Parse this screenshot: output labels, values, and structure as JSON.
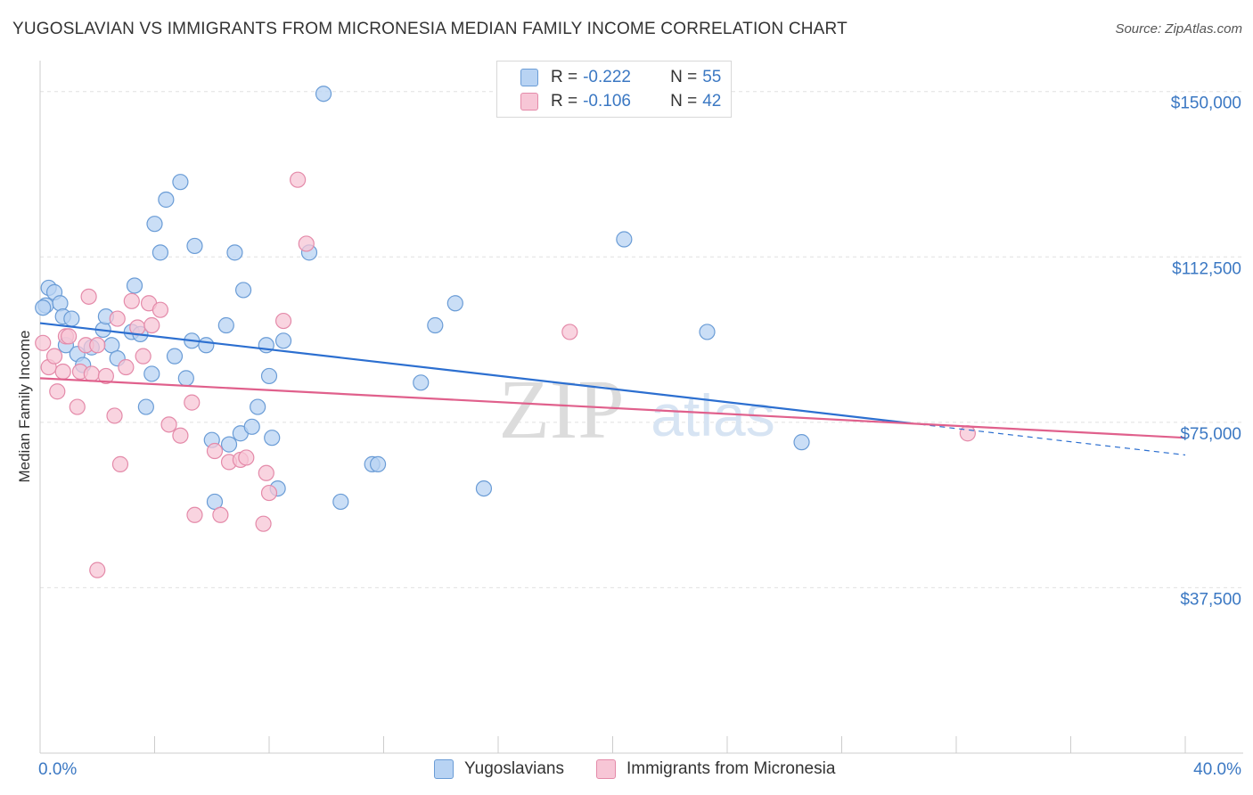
{
  "title": "YUGOSLAVIAN VS IMMIGRANTS FROM MICRONESIA MEDIAN FAMILY INCOME CORRELATION CHART",
  "source": "Source: ZipAtlas.com",
  "watermark": {
    "zip": "ZIP",
    "atlas": "atlas"
  },
  "colors": {
    "blue_fill": "#b8d3f3",
    "blue_stroke": "#6a9cd6",
    "blue_line": "#2c6fd0",
    "pink_fill": "#f7c6d6",
    "pink_stroke": "#e48aa9",
    "pink_line": "#e0608c",
    "axis_text": "#3b78c3",
    "grid": "#e0e0e0"
  },
  "legend": {
    "rows": [
      {
        "r_label": "R =",
        "r_value": "-0.222",
        "n_label": "N =",
        "n_value": "55"
      },
      {
        "r_label": "R =",
        "r_value": "-0.106",
        "n_label": "N =",
        "n_value": "42"
      }
    ]
  },
  "bottom_legend": [
    "Yugoslavians",
    "Immigrants from Micronesia"
  ],
  "chart_data": {
    "type": "scatter",
    "xlabel": "",
    "ylabel": "Median Family Income",
    "xlim": [
      0,
      40
    ],
    "ylim": [
      0,
      155000
    ],
    "x_tick_labels": [
      "0.0%",
      "40.0%"
    ],
    "y_ticks": [
      37500,
      75000,
      112500,
      150000
    ],
    "y_tick_labels": [
      "$37,500",
      "$75,000",
      "$112,500",
      "$150,000"
    ],
    "grid": true,
    "series": [
      {
        "name": "Yugoslavians",
        "trend": {
          "x": [
            0,
            30.4
          ],
          "y": [
            97500,
            74800
          ],
          "dashed_to": [
            40,
            67600
          ]
        },
        "points": [
          [
            0.2,
            101500
          ],
          [
            0.3,
            105500
          ],
          [
            0.5,
            104500
          ],
          [
            0.7,
            102000
          ],
          [
            0.8,
            99000
          ],
          [
            1.1,
            98500
          ],
          [
            0.9,
            92500
          ],
          [
            1.3,
            90500
          ],
          [
            1.5,
            88000
          ],
          [
            1.8,
            92000
          ],
          [
            2.2,
            96000
          ],
          [
            2.3,
            99000
          ],
          [
            2.5,
            92500
          ],
          [
            2.7,
            89500
          ],
          [
            3.2,
            95500
          ],
          [
            3.3,
            106000
          ],
          [
            3.5,
            95000
          ],
          [
            3.7,
            78500
          ],
          [
            3.9,
            86000
          ],
          [
            4.0,
            120000
          ],
          [
            4.2,
            113500
          ],
          [
            4.4,
            125500
          ],
          [
            4.7,
            90000
          ],
          [
            4.9,
            129500
          ],
          [
            5.1,
            85000
          ],
          [
            5.3,
            93500
          ],
          [
            5.4,
            115000
          ],
          [
            5.8,
            92500
          ],
          [
            6.0,
            71000
          ],
          [
            6.1,
            57000
          ],
          [
            6.5,
            97000
          ],
          [
            6.6,
            70000
          ],
          [
            6.8,
            113500
          ],
          [
            7.0,
            72500
          ],
          [
            7.1,
            105000
          ],
          [
            7.4,
            74000
          ],
          [
            7.6,
            78500
          ],
          [
            7.9,
            92500
          ],
          [
            8.0,
            85500
          ],
          [
            8.1,
            71500
          ],
          [
            8.3,
            60000
          ],
          [
            8.5,
            93500
          ],
          [
            9.4,
            113500
          ],
          [
            9.9,
            149500
          ],
          [
            10.5,
            57000
          ],
          [
            11.6,
            65500
          ],
          [
            11.8,
            65500
          ],
          [
            13.3,
            84000
          ],
          [
            13.8,
            97000
          ],
          [
            14.5,
            102000
          ],
          [
            15.5,
            60000
          ],
          [
            20.4,
            116500
          ],
          [
            23.3,
            95500
          ],
          [
            26.6,
            70500
          ],
          [
            0.1,
            101000
          ]
        ]
      },
      {
        "name": "Immigrants from Micronesia",
        "trend": {
          "x": [
            0,
            40
          ],
          "y": [
            85000,
            71500
          ]
        },
        "points": [
          [
            0.1,
            93000
          ],
          [
            0.3,
            87500
          ],
          [
            0.5,
            90000
          ],
          [
            0.6,
            82000
          ],
          [
            0.8,
            86500
          ],
          [
            0.9,
            94500
          ],
          [
            1.0,
            94500
          ],
          [
            1.3,
            78500
          ],
          [
            1.4,
            86500
          ],
          [
            1.6,
            92500
          ],
          [
            1.7,
            103500
          ],
          [
            1.8,
            86000
          ],
          [
            2.0,
            92500
          ],
          [
            2.0,
            41500
          ],
          [
            2.3,
            85500
          ],
          [
            2.6,
            76500
          ],
          [
            2.7,
            98500
          ],
          [
            2.8,
            65500
          ],
          [
            3.0,
            87500
          ],
          [
            3.2,
            102500
          ],
          [
            3.4,
            96500
          ],
          [
            3.6,
            90000
          ],
          [
            3.8,
            102000
          ],
          [
            3.9,
            97000
          ],
          [
            4.2,
            100500
          ],
          [
            4.5,
            74500
          ],
          [
            4.9,
            72000
          ],
          [
            5.3,
            79500
          ],
          [
            5.4,
            54000
          ],
          [
            6.1,
            68500
          ],
          [
            6.3,
            54000
          ],
          [
            6.6,
            66000
          ],
          [
            7.0,
            66500
          ],
          [
            7.2,
            67000
          ],
          [
            7.8,
            52000
          ],
          [
            7.9,
            63500
          ],
          [
            8.0,
            59000
          ],
          [
            8.5,
            98000
          ],
          [
            9.0,
            130000
          ],
          [
            9.3,
            115500
          ],
          [
            18.5,
            95500
          ],
          [
            32.4,
            72500
          ]
        ]
      }
    ]
  }
}
